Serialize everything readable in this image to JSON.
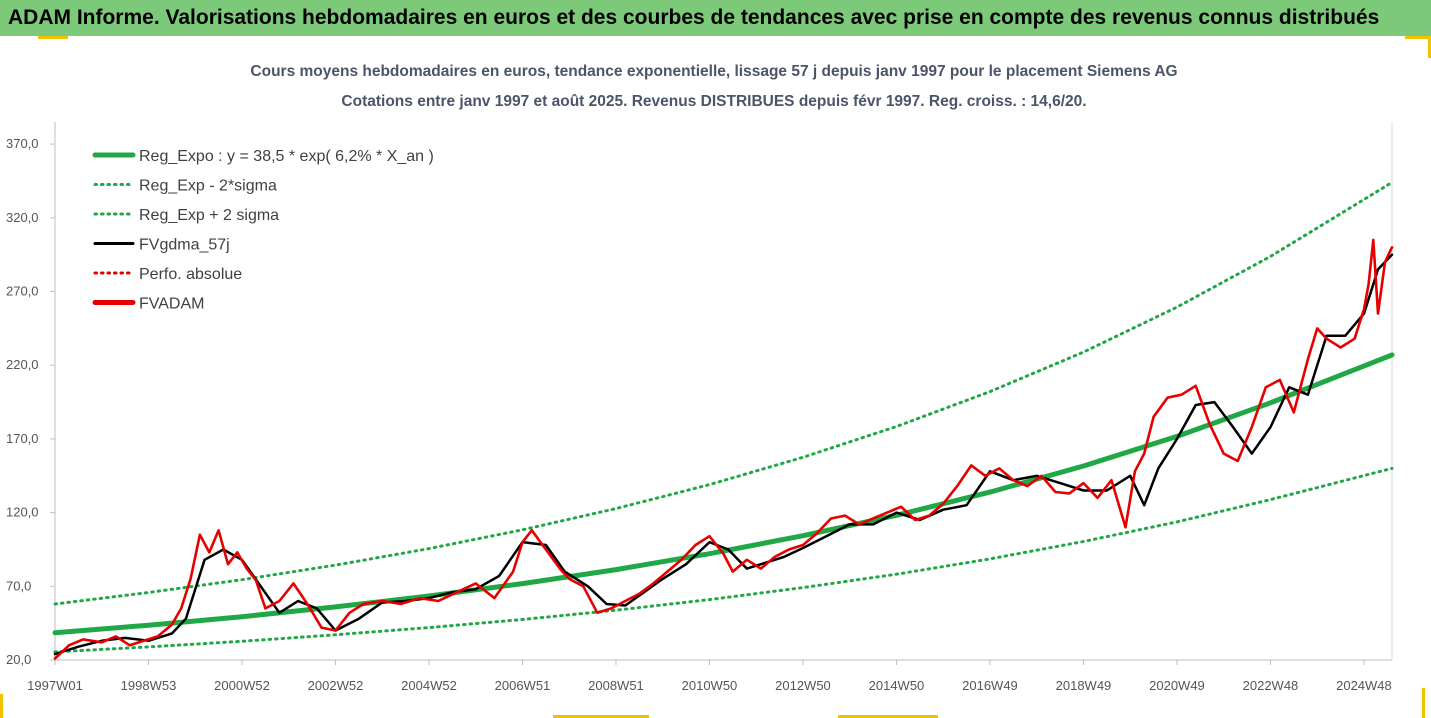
{
  "banner": {
    "title": "ADAM Informe. Valorisations hebdomadaires en euros et des courbes de tendances avec prise en compte des revenus connus distribués"
  },
  "colors": {
    "banner_bg": "#7dc97a",
    "reg_expo": "#1fa845",
    "sigma_bands": "#1fa845",
    "fvgdma": "#000000",
    "perfo": "#e00000",
    "fvadam": "#e60000",
    "corner_marks": "#f2c200"
  },
  "chart_data": {
    "type": "line",
    "title": "Cours moyens hebdomadaires en euros, tendance exponentielle, lissage 57 j depuis janv 1997 pour le placement Siemens AG",
    "subtitle": "Cotations entre janv 1997 et août 2025.  Revenus DISTRIBUES depuis févr 1997.  Reg. croiss. : 14,6/20.",
    "xlabel": "",
    "ylabel": "",
    "x_range": [
      1997.0,
      2025.6
    ],
    "ylim": [
      20,
      385
    ],
    "y_ticks": [
      "20,0",
      "70,0",
      "120,0",
      "170,0",
      "220,0",
      "270,0",
      "320,0",
      "370,0"
    ],
    "y_tick_values": [
      20,
      70,
      120,
      170,
      220,
      270,
      320,
      370
    ],
    "x_tick_labels": [
      "1997W01",
      "1998W53",
      "2000W52",
      "2002W52",
      "2004W52",
      "2006W51",
      "2008W51",
      "2010W50",
      "2012W50",
      "2014W50",
      "2016W49",
      "2018W49",
      "2020W49",
      "2022W48",
      "2024W48"
    ],
    "x_tick_values": [
      1997.0,
      1999.0,
      2001.0,
      2003.0,
      2005.0,
      2007.0,
      2009.0,
      2011.0,
      2013.0,
      2015.0,
      2017.0,
      2019.0,
      2021.0,
      2023.0,
      2025.0
    ],
    "grid": false,
    "legend_position": "top-left",
    "legend": [
      {
        "label": "Reg_Expo : y = 38,5 * exp( 6,2% *  X_an )",
        "color": "#1fa845",
        "style": "solid-thick"
      },
      {
        "label": "Reg_Exp - 2*sigma",
        "color": "#1fa845",
        "style": "dotted"
      },
      {
        "label": "Reg_Exp + 2 sigma",
        "color": "#1fa845",
        "style": "dotted"
      },
      {
        "label": "FVgdma_57j",
        "color": "#000000",
        "style": "solid"
      },
      {
        "label": "Perfo. absolue",
        "color": "#e00000",
        "style": "dotted"
      },
      {
        "label": "FVADAM",
        "color": "#e60000",
        "style": "solid-thick"
      }
    ],
    "series": [
      {
        "name": "Reg_Expo : y = 38,5 * exp( 6,2% *  X_an )",
        "x": [
          1997.0,
          1999.0,
          2001.0,
          2003.0,
          2005.0,
          2007.0,
          2009.0,
          2011.0,
          2013.0,
          2015.0,
          2017.0,
          2019.0,
          2021.0,
          2023.0,
          2025.6
        ],
        "values": [
          38.5,
          43.6,
          49.4,
          56.0,
          63.4,
          71.8,
          81.3,
          92.1,
          104.3,
          118.2,
          133.9,
          151.6,
          171.7,
          194.5,
          227.0
        ]
      },
      {
        "name": "Reg_Exp - 2*sigma",
        "x": [
          1997.0,
          1999.0,
          2001.0,
          2003.0,
          2005.0,
          2007.0,
          2009.0,
          2011.0,
          2013.0,
          2015.0,
          2017.0,
          2019.0,
          2021.0,
          2023.0,
          2025.6
        ],
        "values": [
          25.5,
          28.9,
          32.7,
          37.1,
          42.0,
          47.5,
          53.8,
          61.0,
          69.1,
          78.2,
          88.6,
          100.4,
          113.7,
          128.8,
          150.0
        ]
      },
      {
        "name": "Reg_Exp + 2 sigma",
        "x": [
          1997.0,
          1999.0,
          2001.0,
          2003.0,
          2005.0,
          2007.0,
          2009.0,
          2011.0,
          2013.0,
          2015.0,
          2017.0,
          2019.0,
          2021.0,
          2023.0,
          2025.6
        ],
        "values": [
          58.0,
          65.8,
          74.5,
          84.4,
          95.6,
          108.3,
          122.7,
          139.0,
          157.5,
          178.4,
          202.1,
          228.9,
          259.4,
          293.8,
          344.0
        ]
      },
      {
        "name": "FVgdma_57j",
        "x": [
          1997.0,
          1997.5,
          1998.0,
          1998.5,
          1999.0,
          1999.5,
          1999.8,
          2000.2,
          2000.6,
          2001.0,
          2001.4,
          2001.8,
          2002.2,
          2002.6,
          2003.0,
          2003.5,
          2004.0,
          2004.5,
          2005.0,
          2005.5,
          2006.0,
          2006.5,
          2007.0,
          2007.5,
          2007.9,
          2008.4,
          2008.8,
          2009.2,
          2009.6,
          2010.0,
          2010.5,
          2011.0,
          2011.4,
          2011.8,
          2012.2,
          2012.6,
          2013.0,
          2013.5,
          2014.0,
          2014.5,
          2015.0,
          2015.5,
          2016.0,
          2016.5,
          2017.0,
          2017.5,
          2018.0,
          2018.5,
          2019.0,
          2019.5,
          2020.0,
          2020.3,
          2020.6,
          2021.0,
          2021.4,
          2021.8,
          2022.2,
          2022.6,
          2023.0,
          2023.4,
          2023.8,
          2024.2,
          2024.6,
          2025.0,
          2025.3,
          2025.6
        ],
        "values": [
          24,
          29,
          33,
          35,
          33,
          38,
          48,
          88,
          95,
          88,
          70,
          52,
          60,
          55,
          40,
          48,
          59,
          60,
          62,
          66,
          68,
          77,
          100,
          98,
          80,
          70,
          58,
          57,
          66,
          75,
          85,
          100,
          95,
          82,
          86,
          90,
          96,
          104,
          112,
          112,
          120,
          115,
          122,
          125,
          148,
          142,
          145,
          140,
          135,
          135,
          145,
          125,
          150,
          170,
          193,
          195,
          178,
          160,
          178,
          205,
          200,
          240,
          240,
          255,
          285,
          295
        ]
      },
      {
        "name": "FVADAM",
        "x": [
          1997.0,
          1997.3,
          1997.6,
          1998.0,
          1998.3,
          1998.6,
          1998.9,
          1999.2,
          1999.5,
          1999.7,
          1999.9,
          2000.1,
          2000.3,
          2000.5,
          2000.7,
          2000.9,
          2001.1,
          2001.3,
          2001.5,
          2001.8,
          2002.1,
          2002.4,
          2002.7,
          2003.0,
          2003.3,
          2003.6,
          2004.0,
          2004.4,
          2004.8,
          2005.2,
          2005.6,
          2006.0,
          2006.4,
          2006.8,
          2007.0,
          2007.2,
          2007.5,
          2007.8,
          2008.0,
          2008.3,
          2008.6,
          2008.9,
          2009.2,
          2009.5,
          2009.8,
          2010.1,
          2010.4,
          2010.7,
          2011.0,
          2011.3,
          2011.5,
          2011.8,
          2012.1,
          2012.4,
          2012.7,
          2013.0,
          2013.3,
          2013.6,
          2013.9,
          2014.2,
          2014.5,
          2014.8,
          2015.1,
          2015.4,
          2015.7,
          2016.0,
          2016.3,
          2016.6,
          2016.9,
          2017.2,
          2017.5,
          2017.8,
          2018.1,
          2018.4,
          2018.7,
          2019.0,
          2019.3,
          2019.6,
          2019.9,
          2020.1,
          2020.3,
          2020.5,
          2020.8,
          2021.1,
          2021.4,
          2021.7,
          2022.0,
          2022.3,
          2022.6,
          2022.9,
          2023.2,
          2023.5,
          2023.8,
          2024.0,
          2024.2,
          2024.5,
          2024.8,
          2025.0,
          2025.1,
          2025.2,
          2025.3,
          2025.45,
          2025.6
        ],
        "values": [
          21,
          30,
          34,
          32,
          36,
          30,
          33,
          36,
          44,
          55,
          75,
          105,
          93,
          108,
          85,
          93,
          82,
          74,
          55,
          60,
          72,
          58,
          42,
          40,
          52,
          58,
          60,
          58,
          62,
          60,
          66,
          72,
          62,
          80,
          100,
          108,
          95,
          82,
          75,
          70,
          52,
          55,
          60,
          65,
          72,
          80,
          88,
          98,
          104,
          92,
          80,
          88,
          82,
          90,
          95,
          98,
          106,
          116,
          118,
          112,
          116,
          120,
          124,
          115,
          118,
          126,
          138,
          152,
          145,
          150,
          142,
          138,
          145,
          134,
          133,
          140,
          130,
          142,
          110,
          148,
          160,
          185,
          198,
          200,
          206,
          180,
          160,
          155,
          178,
          205,
          210,
          188,
          224,
          245,
          238,
          232,
          238,
          258,
          275,
          305,
          255,
          290,
          300
        ]
      }
    ]
  }
}
